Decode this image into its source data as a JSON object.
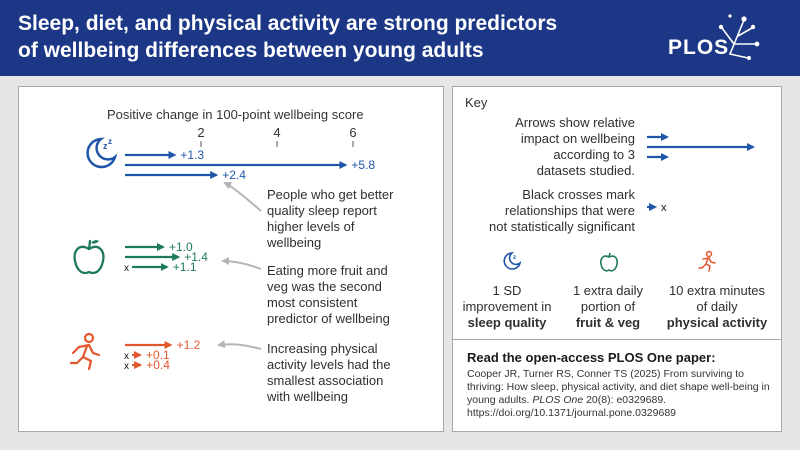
{
  "header": {
    "title_line1": "Sleep, diet, and physical activity are strong predictors",
    "title_line2": "of wellbeing differences between young adults",
    "logo_text": "PLOS"
  },
  "chart": {
    "axis_label": "Positive change in 100-point wellbeing score",
    "ticks": [
      "2",
      "4",
      "6"
    ],
    "tick_values": [
      2,
      4,
      6
    ]
  },
  "chart_data": {
    "type": "bar",
    "xlabel": "Positive change in 100-point wellbeing score",
    "xlim": [
      0,
      6.5
    ],
    "groups": [
      {
        "key": "sleep",
        "icon": "sleep-moon-icon",
        "color": "#1f56a8",
        "values": [
          1.3,
          5.8,
          2.4
        ],
        "labels": [
          "+1.3",
          "+5.8",
          "+2.4"
        ],
        "significant": [
          true,
          true,
          true
        ]
      },
      {
        "key": "diet",
        "icon": "apple-icon",
        "color": "#1f7a5a",
        "values": [
          1.0,
          1.4,
          1.1
        ],
        "labels": [
          "+1.0",
          "+1.4",
          "+1.1"
        ],
        "significant": [
          true,
          true,
          false
        ]
      },
      {
        "key": "activity",
        "icon": "running-person-icon",
        "color": "#e4572e",
        "values": [
          1.2,
          0.1,
          0.4
        ],
        "labels": [
          "+1.2",
          "+0.1",
          "+0.4"
        ],
        "significant": [
          true,
          false,
          false
        ]
      }
    ]
  },
  "annotations": {
    "sleep": [
      "People who get better",
      "quality sleep report",
      "higher levels of",
      "wellbeing"
    ],
    "diet": [
      "Eating more fruit and",
      "veg was the second",
      "most consistent",
      "predictor of wellbeing"
    ],
    "activity": [
      "Increasing physical",
      "activity levels had the",
      "smallest association",
      "with wellbeing"
    ]
  },
  "key": {
    "title": "Key",
    "arrows_text": [
      "Arrows show relative",
      "impact on wellbeing",
      "according to 3",
      "datasets studied."
    ],
    "crosses_text": [
      "Black crosses mark",
      "relationships that were",
      "not statistically significant"
    ],
    "cross_symbol": "x",
    "units": [
      {
        "icon": "sleep-moon-icon",
        "line1": "1 SD",
        "line2": "improvement in",
        "bold": "sleep quality",
        "color": "#1f56a8"
      },
      {
        "icon": "apple-icon",
        "line1": "1 extra daily",
        "line2": "portion of",
        "bold": "fruit & veg",
        "color": "#1f7a5a"
      },
      {
        "icon": "running-person-icon",
        "line1": "10 extra minutes",
        "line2": "of daily",
        "bold": "physical activity",
        "color": "#e4572e"
      }
    ]
  },
  "paper": {
    "heading": "Read the open-access PLOS One paper:",
    "citation_part1": "Cooper JR, Turner RS, Conner TS (2025) From surviving to thriving: How sleep, physical activity, and diet shape well-being in young adults.",
    "journal": "PLOS One",
    "citation_part2": "20(8): e0329689. https://doi.org/10.1371/journal.pone.0329689"
  },
  "colors": {
    "header_bg": "#1d3787",
    "sleep": "#1f56a8",
    "diet": "#1f7a5a",
    "activity": "#e4572e"
  }
}
